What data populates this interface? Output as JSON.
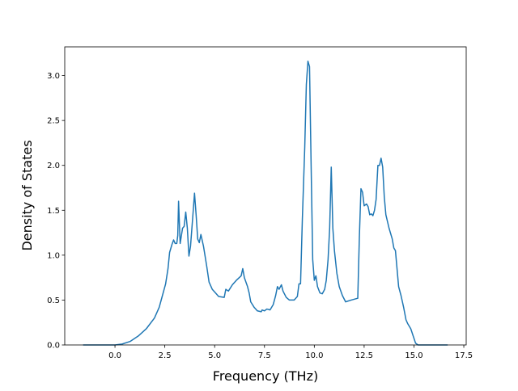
{
  "chart_data": {
    "type": "line",
    "x_label": "Frequency (THz)",
    "y_label": "Density of States",
    "xlim": [
      -2.52,
      17.62
    ],
    "ylim": [
      0,
      3.32
    ],
    "xticks": [
      {
        "value": 0,
        "label": "0.0"
      },
      2.5,
      {
        "value": 5,
        "label": "5.0"
      },
      7.5,
      {
        "value": 10,
        "label": "10.0"
      },
      12.5,
      {
        "value": 15,
        "label": "15.0"
      },
      17.5
    ],
    "yticks": [
      {
        "value": 0,
        "label": "0.0"
      },
      0.5,
      {
        "value": 1,
        "label": "1.0"
      },
      1.5,
      {
        "value": 2,
        "label": "2.0"
      },
      2.5,
      {
        "value": 3,
        "label": "3.0"
      }
    ],
    "series": [
      {
        "color": "#1f77b4",
        "x": [
          -1.6,
          0,
          0.36,
          0.77,
          1.17,
          1.57,
          1.98,
          2.22,
          2.38,
          2.54,
          2.66,
          2.74,
          2.86,
          2.94,
          3.02,
          3.1,
          3.15,
          3.19,
          3.27,
          3.39,
          3.47,
          3.55,
          3.63,
          3.71,
          3.79,
          3.91,
          3.99,
          4.07,
          4.15,
          4.23,
          4.31,
          4.44,
          4.6,
          4.72,
          4.88,
          5.04,
          5.2,
          5.48,
          5.56,
          5.69,
          5.89,
          6.09,
          6.33,
          6.41,
          6.49,
          6.65,
          6.73,
          6.81,
          6.98,
          7.14,
          7.34,
          7.38,
          7.5,
          7.62,
          7.78,
          7.94,
          8.06,
          8.15,
          8.23,
          8.35,
          8.43,
          8.59,
          8.75,
          8.99,
          9.15,
          9.23,
          9.31,
          9.4,
          9.52,
          9.6,
          9.68,
          9.76,
          9.84,
          9.92,
          10.0,
          10.08,
          10.16,
          10.28,
          10.4,
          10.52,
          10.6,
          10.69,
          10.77,
          10.85,
          10.93,
          11.01,
          11.13,
          11.25,
          11.41,
          11.57,
          11.85,
          12.18,
          12.26,
          12.34,
          12.42,
          12.5,
          12.62,
          12.7,
          12.78,
          12.86,
          12.94,
          13.02,
          13.1,
          13.19,
          13.27,
          13.35,
          13.43,
          13.51,
          13.59,
          13.75,
          13.91,
          13.99,
          14.07,
          14.15,
          14.23,
          14.35,
          14.48,
          14.6,
          14.68,
          14.84,
          14.96,
          15.08,
          15.2,
          16.69
        ],
        "values": [
          0,
          0,
          0.01,
          0.04,
          0.1,
          0.18,
          0.3,
          0.42,
          0.55,
          0.68,
          0.85,
          1.03,
          1.12,
          1.17,
          1.13,
          1.13,
          1.22,
          1.6,
          1.13,
          1.3,
          1.32,
          1.48,
          1.3,
          0.99,
          1.1,
          1.45,
          1.69,
          1.45,
          1.18,
          1.14,
          1.23,
          1.1,
          0.88,
          0.7,
          0.62,
          0.58,
          0.54,
          0.53,
          0.62,
          0.6,
          0.67,
          0.72,
          0.77,
          0.85,
          0.75,
          0.65,
          0.58,
          0.48,
          0.42,
          0.38,
          0.37,
          0.39,
          0.38,
          0.4,
          0.39,
          0.45,
          0.55,
          0.65,
          0.62,
          0.67,
          0.6,
          0.53,
          0.5,
          0.5,
          0.54,
          0.68,
          0.68,
          1.4,
          2.2,
          2.9,
          3.16,
          3.1,
          2.0,
          0.95,
          0.72,
          0.77,
          0.65,
          0.58,
          0.57,
          0.62,
          0.72,
          0.95,
          1.3,
          1.98,
          1.3,
          1.05,
          0.8,
          0.65,
          0.55,
          0.48,
          0.5,
          0.52,
          1.2,
          1.74,
          1.7,
          1.55,
          1.57,
          1.54,
          1.45,
          1.46,
          1.44,
          1.5,
          1.62,
          2.0,
          2.0,
          2.08,
          1.98,
          1.65,
          1.45,
          1.3,
          1.18,
          1.08,
          1.05,
          0.85,
          0.65,
          0.55,
          0.42,
          0.28,
          0.24,
          0.18,
          0.1,
          0.02,
          0,
          0
        ]
      }
    ]
  }
}
